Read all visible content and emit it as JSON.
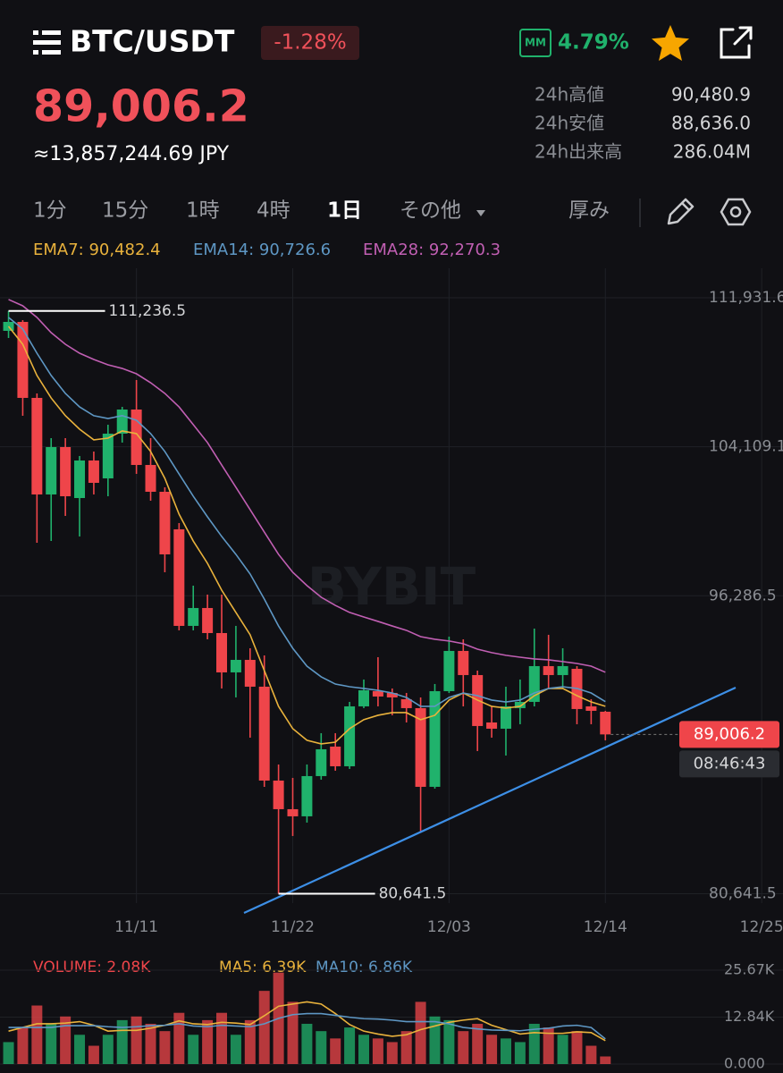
{
  "header": {
    "title": "BTC/USDT",
    "change": "-1.28%",
    "mm_label": "MM",
    "mm_value": "4.79%"
  },
  "price": {
    "last": "89,006.2",
    "fiat": "≈13,857,244.69 JPY"
  },
  "stats": [
    {
      "label": "24h高値",
      "value": "90,480.9"
    },
    {
      "label": "24h安値",
      "value": "88,636.0"
    },
    {
      "label": "24h出来高",
      "value": "286.04M"
    }
  ],
  "timeframes": {
    "items": [
      "1分",
      "15分",
      "1時",
      "4時",
      "1日",
      "その他"
    ],
    "active": 4,
    "depth": "厚み"
  },
  "watermark": "BYBIT",
  "chart_data": [
    {
      "type": "candlestick",
      "open": [
        110194,
        110664,
        106674,
        101604,
        104092,
        101416,
        103388,
        102449,
        104796,
        106063,
        103153,
        101745,
        99774,
        94704,
        95643,
        94328,
        92263,
        92920,
        91512,
        86583,
        85081,
        84706,
        86818,
        88367,
        87334,
        90479,
        91277,
        91183,
        90855,
        90386,
        86255,
        91277,
        93390,
        92122,
        89634,
        89306,
        90386,
        90714,
        92592,
        92122,
        92450,
        90479,
        90198
      ],
      "high": [
        111236.5,
        110757,
        106908,
        104561,
        104561,
        103623,
        103857,
        105265,
        106204,
        107612,
        104561,
        101980,
        100102,
        96816,
        96347,
        96347,
        94704,
        93530,
        93155,
        87428,
        86724,
        87428,
        89071,
        89071,
        90714,
        91888,
        93061,
        91418,
        91183,
        90949,
        91653,
        94141,
        94000,
        92357,
        90479,
        91512,
        91888,
        94563,
        94235,
        93530,
        92592,
        90855,
        90245
      ],
      "low": [
        109819,
        105735,
        99069,
        99163,
        100478,
        99398,
        101604,
        101510,
        104327,
        102684,
        101276,
        97520,
        94469,
        94469,
        94000,
        91418,
        90949,
        88836,
        86255,
        80641.5,
        83673,
        84377,
        86630,
        87100,
        87194,
        90386,
        90479,
        90010,
        89634,
        83908,
        86161,
        91183,
        90479,
        88132,
        88836,
        87898,
        89541,
        90479,
        91418,
        91418,
        89541,
        89541,
        88695
      ],
      "close": [
        110664,
        106674,
        101604,
        104092,
        101510,
        103388,
        102214,
        104796,
        106063,
        103153,
        101745,
        98459,
        94704,
        95643,
        94328,
        92263,
        92920,
        91512,
        86583,
        85081,
        84706,
        86818,
        88226,
        87334,
        90479,
        91324,
        90996,
        90949,
        90386,
        86255,
        91277,
        93390,
        92122,
        89447,
        89306,
        90479,
        90714,
        92592,
        92122,
        92592,
        90339,
        90245,
        89006.2
      ],
      "up_color": "#20b26c",
      "down_color": "#ef454a",
      "series": [
        {
          "legend": "EMA7: 90,482.4",
          "color": "#e9b23c",
          "values": [
            110430,
            109490,
            107850,
            106670,
            105740,
            105030,
            104470,
            104560,
            104940,
            104800,
            103860,
            102450,
            100570,
            99160,
            97990,
            96580,
            95410,
            94240,
            92360,
            90480,
            89310,
            88700,
            88510,
            88600,
            89310,
            89780,
            90010,
            90150,
            90150,
            89780,
            90010,
            90810,
            91180,
            90810,
            90480,
            90390,
            90480,
            91040,
            91420,
            91420,
            91040,
            90710,
            90482.4
          ]
        },
        {
          "legend": "EMA14: 90,726.6",
          "color": "#5e97c4",
          "values": [
            110900,
            110290,
            109020,
            107850,
            106910,
            106200,
            105740,
            105590,
            105740,
            105500,
            104800,
            103860,
            102680,
            101510,
            100430,
            99400,
            98460,
            97430,
            96110,
            94700,
            93530,
            92590,
            92030,
            91650,
            91510,
            91420,
            91320,
            91180,
            90950,
            90480,
            90480,
            90950,
            91180,
            91040,
            90810,
            90710,
            90810,
            91180,
            91420,
            91510,
            91420,
            91180,
            90726.6
          ]
        },
        {
          "legend": "EMA28: 92,270.3",
          "color": "#c15fb3",
          "values": [
            111840,
            111510,
            110900,
            110100,
            109490,
            109020,
            108690,
            108410,
            108220,
            107940,
            107470,
            106910,
            106200,
            105270,
            104330,
            103150,
            101980,
            100810,
            99630,
            98460,
            97520,
            96820,
            96210,
            95780,
            95410,
            95170,
            94940,
            94700,
            94470,
            94140,
            94000,
            93910,
            93770,
            93480,
            93300,
            93160,
            93060,
            92970,
            92920,
            92830,
            92730,
            92590,
            92270.3
          ]
        }
      ],
      "xlim": [
        -0.6,
        54.5
      ],
      "xticks": [
        {
          "value": 9,
          "label": "11/11"
        },
        {
          "value": 20,
          "label": "11/22"
        },
        {
          "value": 31,
          "label": "12/03"
        },
        {
          "value": 42,
          "label": "12/14"
        },
        {
          "value": 53,
          "label": "12/25"
        }
      ],
      "ylim": [
        80150,
        113480
      ],
      "yticks": [
        {
          "value": 111931.6,
          "label": "111,931.6"
        },
        {
          "value": 104109.1,
          "label": "104,109.1"
        },
        {
          "value": 96286.5,
          "label": "96,286.5"
        },
        {
          "value": 80641.5,
          "label": "80,641.5"
        }
      ],
      "grid": true,
      "annotations": [
        {
          "value": 111236.5,
          "label": "111,236.5",
          "kind": "high"
        },
        {
          "value": 80641.5,
          "label": "80,641.5",
          "kind": "low"
        }
      ],
      "last_price": {
        "value": 89006.2,
        "label": "89,006.2"
      },
      "countdown": "08:46:43"
    },
    {
      "type": "bar",
      "series": [
        {
          "legend": "VOLUME: 2.08K",
          "color": "#ef454a",
          "values": [
            6,
            10,
            16,
            11,
            13,
            8,
            5,
            8,
            12,
            13,
            11,
            9,
            14,
            8,
            12,
            14,
            8,
            12,
            20,
            25,
            17,
            11,
            9,
            7,
            10,
            8,
            7,
            6,
            9,
            17,
            13,
            12,
            9,
            11,
            8,
            7,
            6,
            11,
            10,
            8,
            9,
            5,
            2.08
          ]
        },
        {
          "legend": "MA5: 6.39K",
          "color": "#e9b23c",
          "values": [
            9,
            10,
            11,
            11,
            11.2,
            11.6,
            10.6,
            9,
            9.2,
            9.2,
            9.8,
            10.6,
            11.8,
            11,
            10.8,
            11.4,
            11.2,
            10.8,
            13.2,
            15.8,
            16.4,
            17,
            16.4,
            13.8,
            10.8,
            9,
            8.2,
            7.6,
            8,
            9.4,
            10.4,
            11.4,
            12,
            12.4,
            10.6,
            9.4,
            8.2,
            8.6,
            8.4,
            8.4,
            8.8,
            8.6,
            6.39
          ]
        },
        {
          "legend": "MA10: 6.86K",
          "color": "#5e97c4",
          "values": [
            10,
            10,
            10,
            10,
            10.5,
            10.5,
            10.5,
            10.2,
            10,
            10.2,
            10.5,
            10.6,
            11,
            10.4,
            10.2,
            10.6,
            10.4,
            10.2,
            11,
            12.5,
            13.5,
            13.8,
            13.8,
            13.3,
            12.8,
            12.4,
            12.3,
            12,
            11.6,
            11.6,
            11.6,
            11,
            10,
            9.6,
            9.3,
            9.2,
            9.1,
            9.5,
            9.8,
            10.4,
            10.6,
            10,
            6.86
          ]
        }
      ],
      "ylim": [
        0,
        28.1
      ],
      "yticks": [
        {
          "value": 25.67,
          "label": "25.67K"
        },
        {
          "value": 12.84,
          "label": "12.84K"
        },
        {
          "value": 0,
          "label": "0.000"
        }
      ]
    }
  ]
}
